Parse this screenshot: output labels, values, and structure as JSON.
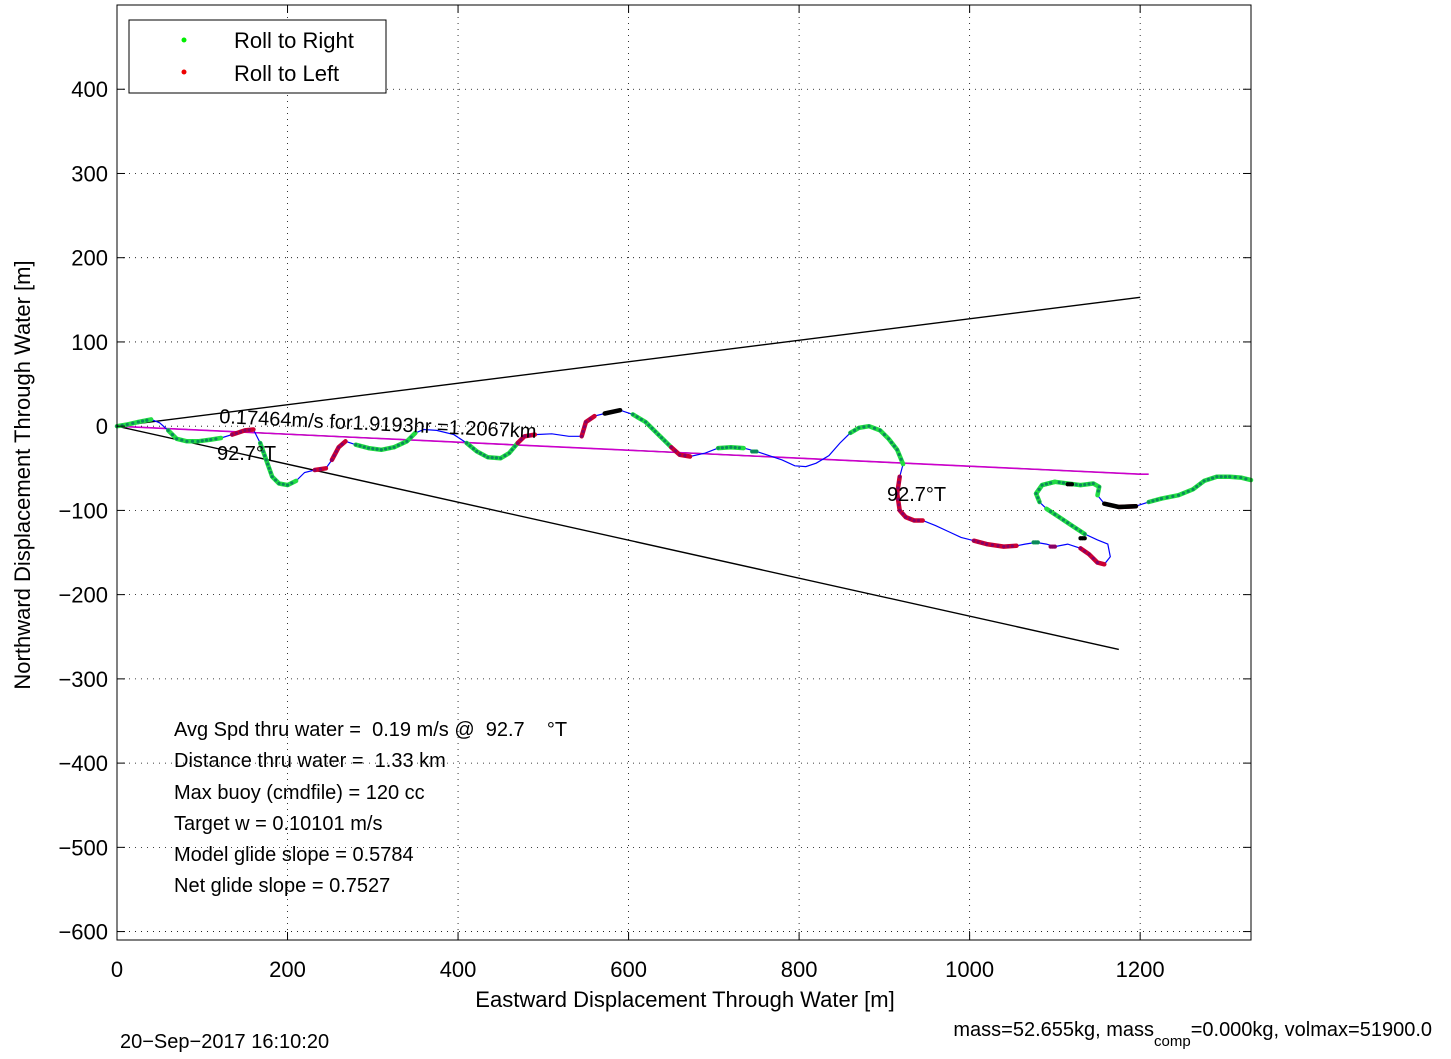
{
  "chart_data": {
    "type": "line",
    "xlabel": "Eastward Displacement Through Water [m]",
    "ylabel": "Northward Displacement Through Water [m]",
    "xlim": [
      0,
      1330
    ],
    "ylim": [
      -610,
      500
    ],
    "xticks": [
      0,
      200,
      400,
      600,
      800,
      1000,
      1200
    ],
    "yticks": [
      -600,
      -500,
      -400,
      -300,
      -200,
      -100,
      0,
      100,
      200,
      300,
      400
    ],
    "grid": true,
    "legend": {
      "placement": "top-left",
      "entries": [
        {
          "label": "Roll to Right",
          "color": "#00ee00"
        },
        {
          "label": "Roll to Left",
          "color": "#ee0000"
        }
      ]
    },
    "colors": {
      "track": "#0000ff",
      "roll_right": "#00ee00",
      "roll_left": "#cc0033",
      "neutral": "#000000",
      "heading_line": "#cc00cc",
      "cone": "#000000"
    },
    "track": [
      [
        0,
        0
      ],
      [
        12,
        2
      ],
      [
        25,
        5
      ],
      [
        40,
        8
      ],
      [
        50,
        4
      ],
      [
        60,
        -5
      ],
      [
        70,
        -15
      ],
      [
        82,
        -18
      ],
      [
        95,
        -18
      ],
      [
        110,
        -16
      ],
      [
        122,
        -14
      ],
      [
        135,
        -10
      ],
      [
        150,
        -5
      ],
      [
        160,
        -4
      ],
      [
        168,
        -20
      ],
      [
        175,
        -40
      ],
      [
        182,
        -60
      ],
      [
        190,
        -68
      ],
      [
        200,
        -70
      ],
      [
        210,
        -65
      ],
      [
        220,
        -55
      ],
      [
        232,
        -52
      ],
      [
        245,
        -50
      ],
      [
        252,
        -40
      ],
      [
        260,
        -25
      ],
      [
        268,
        -18
      ],
      [
        280,
        -22
      ],
      [
        295,
        -26
      ],
      [
        310,
        -28
      ],
      [
        325,
        -25
      ],
      [
        340,
        -18
      ],
      [
        350,
        -8
      ],
      [
        360,
        -4
      ],
      [
        375,
        -5
      ],
      [
        395,
        -10
      ],
      [
        410,
        -20
      ],
      [
        422,
        -30
      ],
      [
        435,
        -37
      ],
      [
        450,
        -38
      ],
      [
        460,
        -32
      ],
      [
        470,
        -20
      ],
      [
        478,
        -12
      ],
      [
        490,
        -10
      ],
      [
        510,
        -9
      ],
      [
        530,
        -12
      ],
      [
        545,
        -12
      ],
      [
        550,
        5
      ],
      [
        560,
        12
      ],
      [
        572,
        15
      ],
      [
        590,
        19
      ],
      [
        605,
        14
      ],
      [
        620,
        5
      ],
      [
        635,
        -10
      ],
      [
        650,
        -25
      ],
      [
        660,
        -34
      ],
      [
        672,
        -36
      ],
      [
        690,
        -32
      ],
      [
        705,
        -26
      ],
      [
        720,
        -25
      ],
      [
        735,
        -26
      ],
      [
        750,
        -30
      ],
      [
        765,
        -35
      ],
      [
        780,
        -40
      ],
      [
        795,
        -47
      ],
      [
        808,
        -48
      ],
      [
        820,
        -44
      ],
      [
        835,
        -35
      ],
      [
        848,
        -20
      ],
      [
        860,
        -8
      ],
      [
        870,
        -2
      ],
      [
        882,
        0
      ],
      [
        895,
        -5
      ],
      [
        905,
        -15
      ],
      [
        915,
        -28
      ],
      [
        922,
        -45
      ],
      [
        918,
        -60
      ],
      [
        915,
        -80
      ],
      [
        918,
        -100
      ],
      [
        925,
        -108
      ],
      [
        935,
        -112
      ],
      [
        945,
        -112
      ],
      [
        960,
        -118
      ],
      [
        975,
        -125
      ],
      [
        990,
        -132
      ],
      [
        1005,
        -136
      ],
      [
        1020,
        -140
      ],
      [
        1040,
        -143
      ],
      [
        1055,
        -142
      ],
      [
        1065,
        -140
      ],
      [
        1078,
        -138
      ],
      [
        1090,
        -140
      ],
      [
        1100,
        -143
      ],
      [
        1115,
        -140
      ],
      [
        1130,
        -145
      ],
      [
        1140,
        -152
      ],
      [
        1150,
        -162
      ],
      [
        1158,
        -164
      ],
      [
        1165,
        -155
      ],
      [
        1162,
        -140
      ],
      [
        1150,
        -135
      ],
      [
        1135,
        -128
      ],
      [
        1120,
        -118
      ],
      [
        1105,
        -108
      ],
      [
        1090,
        -98
      ],
      [
        1082,
        -90
      ],
      [
        1078,
        -80
      ],
      [
        1085,
        -70
      ],
      [
        1100,
        -66
      ],
      [
        1115,
        -68
      ],
      [
        1130,
        -70
      ],
      [
        1145,
        -68
      ],
      [
        1152,
        -72
      ],
      [
        1150,
        -82
      ],
      [
        1158,
        -92
      ],
      [
        1175,
        -96
      ],
      [
        1195,
        -95
      ],
      [
        1210,
        -90
      ],
      [
        1225,
        -86
      ],
      [
        1245,
        -82
      ],
      [
        1262,
        -75
      ],
      [
        1275,
        -65
      ],
      [
        1290,
        -60
      ],
      [
        1305,
        -60
      ],
      [
        1318,
        -61
      ],
      [
        1330,
        -64
      ]
    ],
    "roll_right_segments": [
      [
        [
          0,
          0
        ],
        [
          40,
          8
        ]
      ],
      [
        [
          60,
          -5
        ],
        [
          122,
          -14
        ]
      ],
      [
        [
          168,
          -20
        ],
        [
          210,
          -65
        ]
      ],
      [
        [
          282,
          -22
        ],
        [
          325,
          -25
        ]
      ],
      [
        [
          330,
          -25
        ],
        [
          350,
          -8
        ]
      ],
      [
        [
          410,
          -20
        ],
        [
          470,
          -20
        ]
      ],
      [
        [
          605,
          14
        ],
        [
          650,
          -25
        ]
      ],
      [
        [
          705,
          -26
        ],
        [
          735,
          -26
        ]
      ],
      [
        [
          745,
          -30
        ],
        [
          750,
          -30
        ]
      ],
      [
        [
          860,
          -8
        ],
        [
          922,
          -45
        ]
      ],
      [
        [
          1082,
          -90
        ],
        [
          1150,
          -82
        ]
      ],
      [
        [
          1078,
          -80
        ],
        [
          1100,
          -66
        ]
      ],
      [
        [
          1090,
          -98
        ],
        [
          1135,
          -128
        ]
      ],
      [
        [
          1075,
          -138
        ],
        [
          1080,
          -138
        ]
      ],
      [
        [
          1210,
          -90
        ],
        [
          1330,
          -64
        ]
      ]
    ],
    "roll_left_segments": [
      [
        [
          135,
          -10
        ],
        [
          160,
          -4
        ]
      ],
      [
        [
          252,
          -40
        ],
        [
          268,
          -18
        ]
      ],
      [
        [
          232,
          -52
        ],
        [
          245,
          -50
        ]
      ],
      [
        [
          470,
          -20
        ],
        [
          490,
          -10
        ]
      ],
      [
        [
          545,
          -12
        ],
        [
          560,
          12
        ]
      ],
      [
        [
          650,
          -25
        ],
        [
          672,
          -36
        ]
      ],
      [
        [
          915,
          -60
        ],
        [
          945,
          -112
        ]
      ],
      [
        [
          1005,
          -136
        ],
        [
          1055,
          -142
        ]
      ],
      [
        [
          1095,
          -143
        ],
        [
          1100,
          -143
        ]
      ],
      [
        [
          1135,
          -148
        ],
        [
          1158,
          -164
        ]
      ],
      [
        [
          1180,
          -96
        ],
        [
          1200,
          -95
        ]
      ]
    ],
    "neutral_segments": [
      [
        [
          570,
          15
        ],
        [
          590,
          19
        ]
      ],
      [
        [
          1158,
          -95
        ],
        [
          1200,
          -95
        ]
      ],
      [
        [
          1130,
          -133
        ],
        [
          1135,
          -133
        ]
      ],
      [
        [
          1115,
          -69
        ],
        [
          1120,
          -69
        ]
      ]
    ],
    "heading_line": [
      [
        0,
        0
      ],
      [
        1200,
        -57
      ]
    ],
    "heading_line_extended": [
      [
        0,
        0
      ],
      [
        1200,
        -57
      ],
      [
        1210,
        -57
      ]
    ],
    "cone_upper": [
      [
        0,
        0
      ],
      [
        1200,
        153
      ]
    ],
    "cone_lower": [
      [
        0,
        0
      ],
      [
        1175,
        -265
      ]
    ],
    "annotations": {
      "speed": "0.17464m/s for1.9193hr =1.2067km",
      "heading_1": "92.7°T",
      "heading_2": "92.7°T",
      "stats": [
        "Avg Spd thru water =  0.19 m/s @  92.7    °T",
        "Distance thru water =  1.33 km",
        "Max buoy (cmdfile) = 120 cc",
        "Target w = 0.10101 m/s",
        "Model glide slope = 0.5784",
        "Net glide slope = 0.7527"
      ]
    }
  },
  "footer": {
    "timestamp": "20−Sep−2017 16:10:20",
    "mass_prefix": "mass=52.655kg, mass",
    "mass_sub": "comp",
    "mass_suffix": "=0.000kg, volmax=51900.0"
  }
}
